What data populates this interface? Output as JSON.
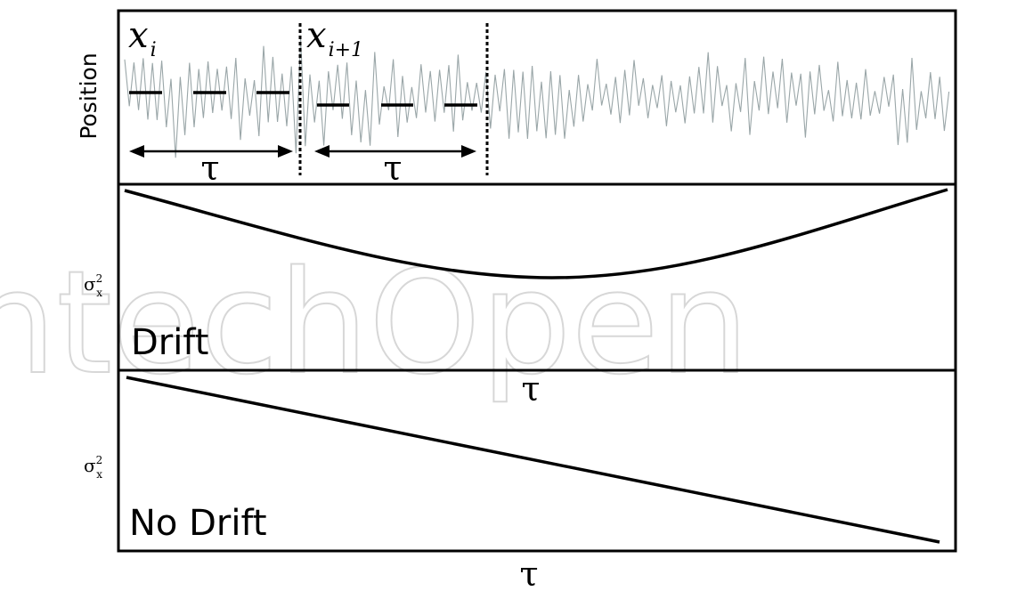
{
  "watermark": "IntechOpen",
  "panel_top": {
    "ylabel": "Position",
    "window_label": "τ",
    "sample_labels": [
      {
        "base": "x",
        "sub": "i"
      },
      {
        "base": "x",
        "sub": "i+1"
      }
    ]
  },
  "panel_drift": {
    "ylabel_base": "σ",
    "ylabel_sub": "x",
    "ylabel_sup": "2",
    "label": "Drift",
    "xlabel": "τ"
  },
  "panel_nodrift": {
    "ylabel_base": "σ",
    "ylabel_sub": "x",
    "ylabel_sup": "2",
    "label": "No Drift",
    "xlabel": "τ"
  },
  "colors": {
    "signal": "#9aa6a8",
    "ink": "#000000",
    "watermark": "#d7d7d7"
  }
}
